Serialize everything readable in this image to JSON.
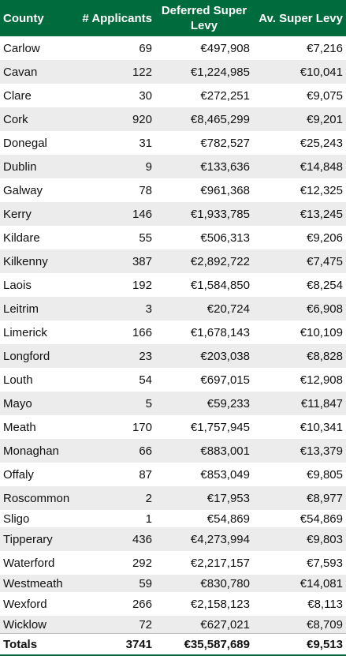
{
  "headers": {
    "county": "County",
    "applicants": "# Applicants",
    "deferred": "Deferred Super Levy",
    "average": "Av. Super Levy"
  },
  "rows": [
    {
      "county": "Carlow",
      "applicants": "69",
      "deferred": "€497,908",
      "average": "€7,216"
    },
    {
      "county": "Cavan",
      "applicants": "122",
      "deferred": "€1,224,985",
      "average": "€10,041"
    },
    {
      "county": "Clare",
      "applicants": "30",
      "deferred": "€272,251",
      "average": "€9,075"
    },
    {
      "county": "Cork",
      "applicants": "920",
      "deferred": "€8,465,299",
      "average": "€9,201"
    },
    {
      "county": "Donegal",
      "applicants": "31",
      "deferred": "€782,527",
      "average": "€25,243"
    },
    {
      "county": "Dublin",
      "applicants": "9",
      "deferred": "€133,636",
      "average": "€14,848"
    },
    {
      "county": "Galway",
      "applicants": "78",
      "deferred": "€961,368",
      "average": "€12,325"
    },
    {
      "county": "Kerry",
      "applicants": "146",
      "deferred": "€1,933,785",
      "average": "€13,245"
    },
    {
      "county": "Kildare",
      "applicants": "55",
      "deferred": "€506,313",
      "average": "€9,206"
    },
    {
      "county": "Kilkenny",
      "applicants": "387",
      "deferred": "€2,892,722",
      "average": "€7,475"
    },
    {
      "county": "Laois",
      "applicants": "192",
      "deferred": "€1,584,850",
      "average": "€8,254"
    },
    {
      "county": "Leitrim",
      "applicants": "3",
      "deferred": "€20,724",
      "average": "€6,908"
    },
    {
      "county": "Limerick",
      "applicants": "166",
      "deferred": "€1,678,143",
      "average": "€10,109"
    },
    {
      "county": "Longford",
      "applicants": "23",
      "deferred": "€203,038",
      "average": "€8,828"
    },
    {
      "county": "Louth",
      "applicants": "54",
      "deferred": "€697,015",
      "average": "€12,908"
    },
    {
      "county": "Mayo",
      "applicants": "5",
      "deferred": "€59,233",
      "average": "€11,847"
    },
    {
      "county": "Meath",
      "applicants": "170",
      "deferred": "€1,757,945",
      "average": "€10,341"
    },
    {
      "county": "Monaghan",
      "applicants": "66",
      "deferred": "€883,001",
      "average": "€13,379"
    },
    {
      "county": "Offaly",
      "applicants": "87",
      "deferred": "€853,049",
      "average": "€9,805"
    },
    {
      "county": "Roscommon",
      "applicants": "2",
      "deferred": "€17,953",
      "average": "€8,977"
    },
    {
      "county": "Sligo",
      "applicants": "1",
      "deferred": "€54,869",
      "average": "€54,869"
    },
    {
      "county": "Tipperary",
      "applicants": "436",
      "deferred": "€4,273,994",
      "average": "€9,803"
    },
    {
      "county": "Waterford",
      "applicants": "292",
      "deferred": "€2,217,157",
      "average": "€7,593"
    },
    {
      "county": "Westmeath",
      "applicants": "59",
      "deferred": "€830,780",
      "average": "€14,081"
    },
    {
      "county": "Wexford",
      "applicants": "266",
      "deferred": "€2,158,123",
      "average": "€8,113"
    },
    {
      "county": "Wicklow",
      "applicants": "72",
      "deferred": "€627,021",
      "average": "€8,709"
    }
  ],
  "totals": {
    "label": "Totals",
    "applicants": "3741",
    "deferred": "€35,587,689",
    "average": "€9,513"
  },
  "colors": {
    "header_bg": "#006b3c",
    "stripe": "#ececec"
  }
}
